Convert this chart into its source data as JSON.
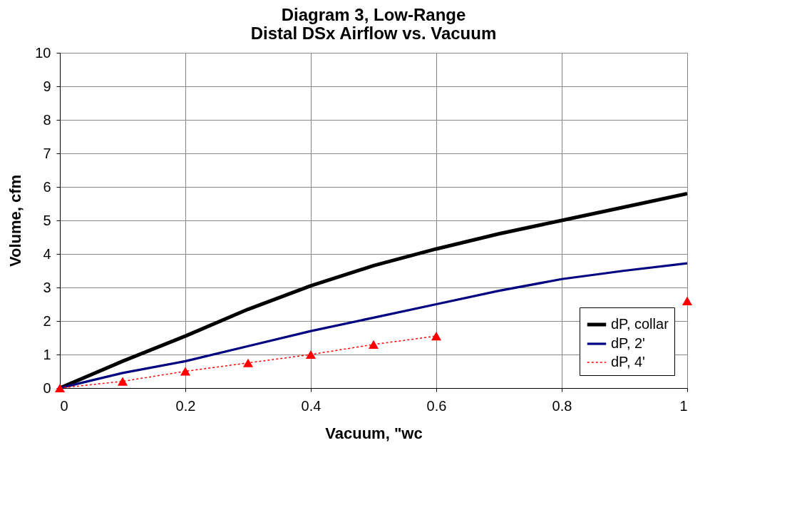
{
  "chart_data": {
    "type": "line",
    "title": [
      "Diagram 3, Low-Range",
      "Distal DSx Airflow vs. Vacuum"
    ],
    "xlabel": "Vacuum, \"wc",
    "ylabel": "Volume, cfm",
    "x": [
      0,
      0.1,
      0.2,
      0.3,
      0.4,
      0.5,
      0.6,
      0.7,
      0.8,
      0.9,
      1.0
    ],
    "series": [
      {
        "name": "dP, collar",
        "color": "#000000",
        "line_style": "solid",
        "values": [
          0,
          0.8,
          1.55,
          2.35,
          3.05,
          3.65,
          4.15,
          4.6,
          5.0,
          5.4,
          5.8
        ]
      },
      {
        "name": "dP, 2'",
        "color": "#000080",
        "line_style": "solid",
        "values": [
          0,
          0.45,
          0.8,
          1.25,
          1.7,
          2.1,
          2.5,
          2.9,
          3.25,
          3.5,
          3.72
        ]
      },
      {
        "name": "dP, 4'",
        "color": "#ff0000",
        "line_style": "dotted",
        "marker": "triangle",
        "values": [
          0,
          0.2,
          0.5,
          0.75,
          1.0,
          1.3,
          1.55,
          null,
          null,
          null,
          2.6
        ]
      }
    ],
    "xlim": [
      0,
      1
    ],
    "xticks": [
      0,
      0.2,
      0.4,
      0.6,
      0.8,
      1
    ],
    "ylim": [
      0,
      10
    ],
    "yticks": [
      0,
      1,
      2,
      3,
      4,
      5,
      6,
      7,
      8,
      9,
      10
    ],
    "grid": true,
    "legend": "bottom right"
  }
}
